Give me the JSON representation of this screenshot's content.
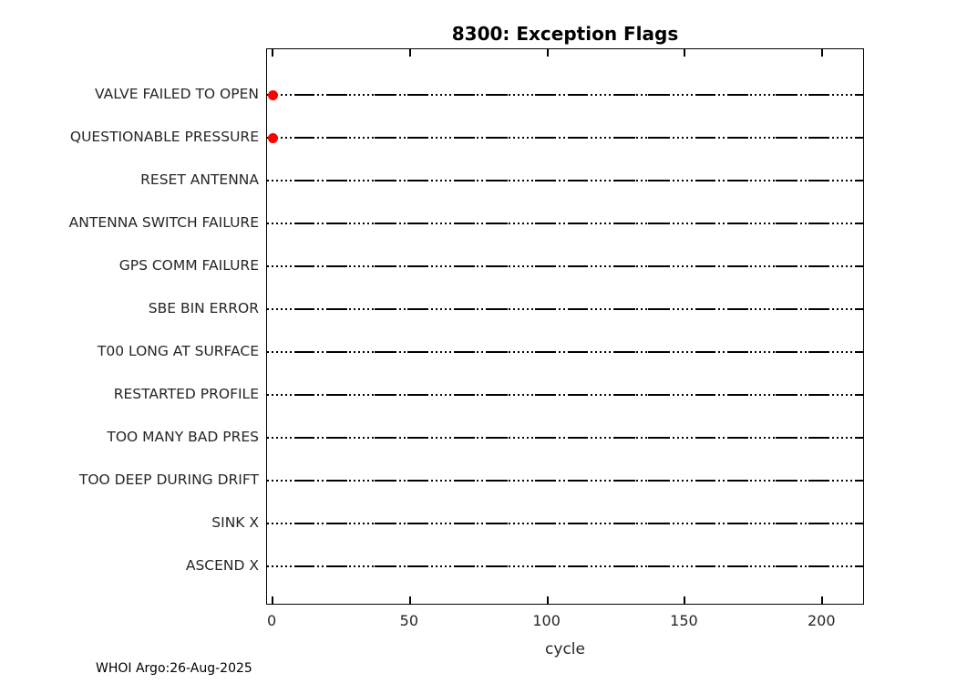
{
  "chart_data": {
    "type": "scatter",
    "title": "8300: Exception Flags",
    "xlabel": "cycle",
    "categories": [
      "VALVE FAILED TO OPEN",
      "QUESTIONABLE PRESSURE",
      "RESET ANTENNA",
      "ANTENNA SWITCH FAILURE",
      "GPS COMM FAILURE",
      "SBE BIN ERROR",
      "T00 LONG AT SURFACE",
      "RESTARTED PROFILE",
      "TOO MANY BAD PRES",
      "TOO DEEP DURING DRIFT",
      "SINK X",
      "ASCEND X"
    ],
    "xticks": [
      0,
      50,
      100,
      150,
      200
    ],
    "xlim": [
      -2,
      215.5
    ],
    "grid": "dotted black horizontal baseline across full width for every category",
    "markers": [
      {
        "category": "VALVE FAILED TO OPEN",
        "x": 0
      },
      {
        "category": "QUESTIONABLE PRESSURE",
        "x": 0
      }
    ],
    "marker_color": "#ff0000",
    "line_color": "#000000",
    "legend": null
  },
  "footer": {
    "text": "WHOI Argo:26-Aug-2025"
  },
  "colors": {
    "background": "#ffffff",
    "axis_text": "#262626",
    "title_text": "#000000",
    "box_line": "#000000"
  }
}
